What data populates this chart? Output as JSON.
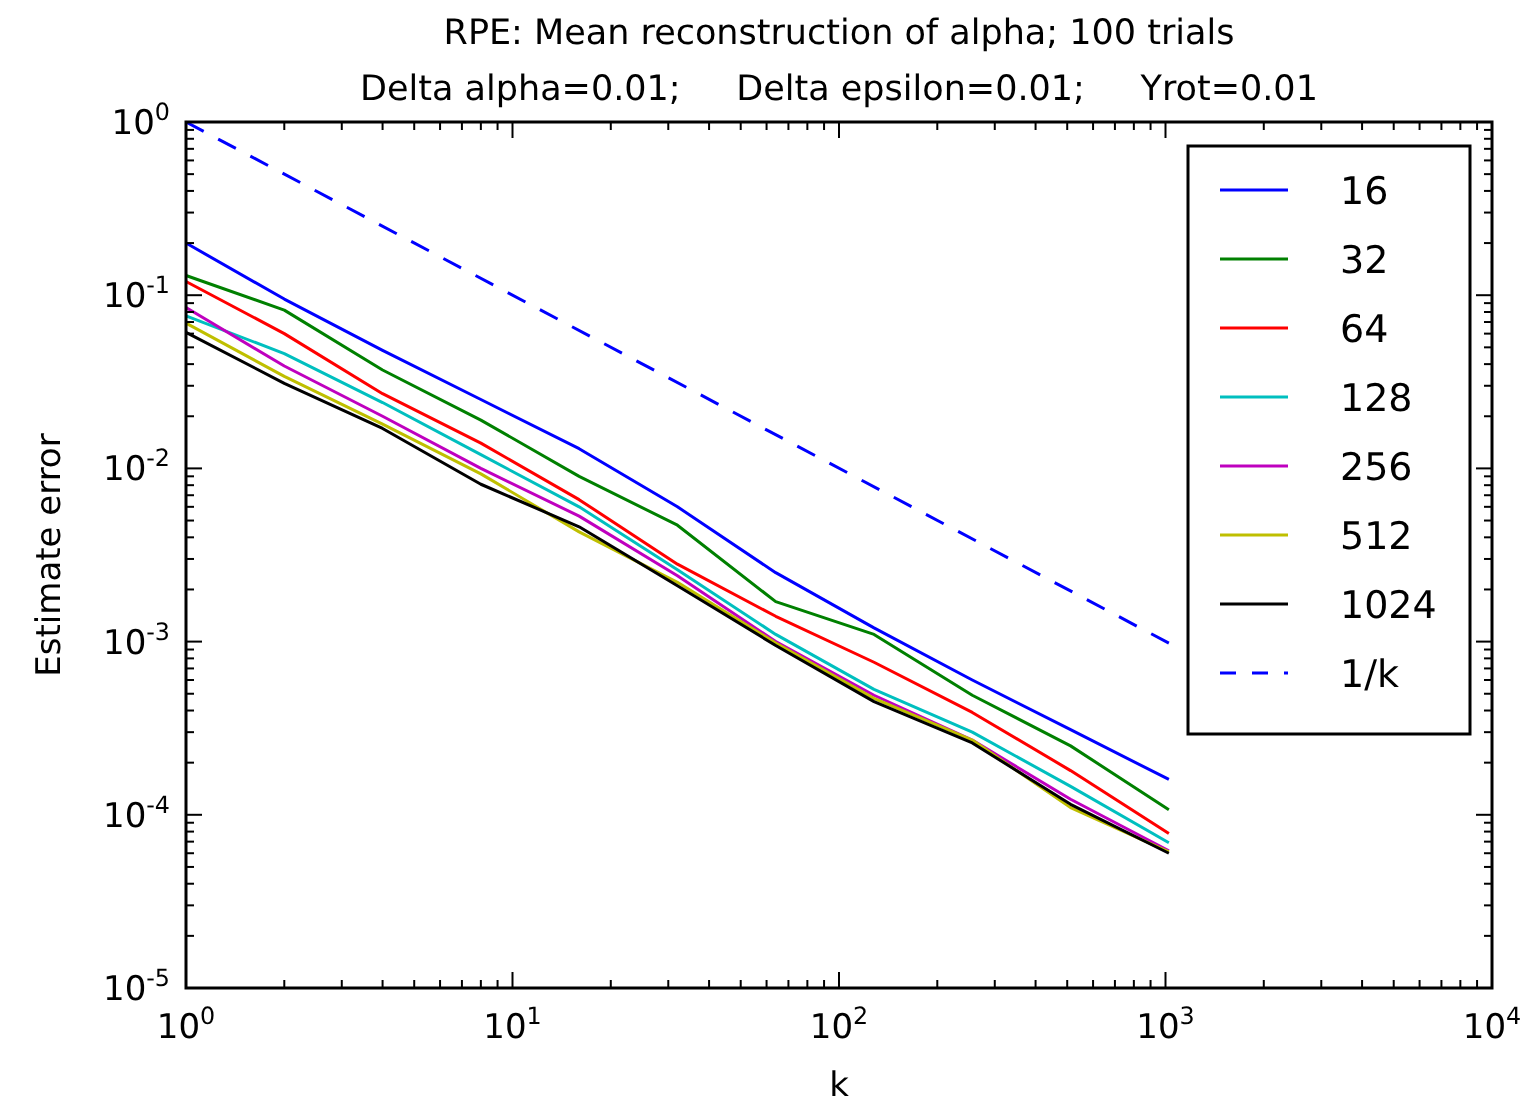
{
  "chart_data": {
    "type": "line",
    "title": "RPE: Mean reconstruction of alpha; 100 trials",
    "subtitle": "Delta alpha=0.01;     Delta epsilon=0.01;     Yrot=0.01",
    "xlabel": "k",
    "ylabel": "Estimate error",
    "log": "xy",
    "grid": false,
    "legend": "top right",
    "line_style": "solid",
    "marker": "none",
    "xlim": [
      1,
      10000
    ],
    "ylim": [
      1e-05,
      1
    ],
    "xticks": [
      {
        "value": 1,
        "label": "10$^{0}$"
      },
      {
        "value": 2,
        "label": null
      },
      {
        "value": 3,
        "label": null
      },
      {
        "value": 4,
        "label": null
      },
      {
        "value": 5,
        "label": null
      },
      {
        "value": 6,
        "label": null
      },
      {
        "value": 7,
        "label": null
      },
      {
        "value": 8,
        "label": null
      },
      {
        "value": 9,
        "label": null
      },
      {
        "value": 10,
        "label": "10$^{1}$"
      },
      {
        "value": 20,
        "label": null
      },
      {
        "value": 30,
        "label": null
      },
      {
        "value": 40,
        "label": null
      },
      {
        "value": 50,
        "label": null
      },
      {
        "value": 60,
        "label": null
      },
      {
        "value": 70,
        "label": null
      },
      {
        "value": 80,
        "label": null
      },
      {
        "value": 90,
        "label": null
      },
      {
        "value": 100,
        "label": "10$^{2}$"
      },
      {
        "value": 200,
        "label": null
      },
      {
        "value": 300,
        "label": null
      },
      {
        "value": 400,
        "label": null
      },
      {
        "value": 500,
        "label": null
      },
      {
        "value": 600,
        "label": null
      },
      {
        "value": 700,
        "label": null
      },
      {
        "value": 800,
        "label": null
      },
      {
        "value": 900,
        "label": null
      },
      {
        "value": 1000,
        "label": "10$^{3}$"
      },
      {
        "value": 2000,
        "label": null
      },
      {
        "value": 3000,
        "label": null
      },
      {
        "value": 4000,
        "label": null
      },
      {
        "value": 5000,
        "label": null
      },
      {
        "value": 6000,
        "label": null
      },
      {
        "value": 7000,
        "label": null
      },
      {
        "value": 8000,
        "label": null
      },
      {
        "value": 9000,
        "label": null
      },
      {
        "value": 10000,
        "label": "10$^{4}$"
      }
    ],
    "yticks": [
      {
        "value": 1e-05,
        "label": "10$^{-5}$"
      },
      {
        "value": 2e-05,
        "label": null
      },
      {
        "value": 3e-05,
        "label": null
      },
      {
        "value": 4e-05,
        "label": null
      },
      {
        "value": 5e-05,
        "label": null
      },
      {
        "value": 6e-05,
        "label": null
      },
      {
        "value": 7e-05,
        "label": null
      },
      {
        "value": 8e-05,
        "label": null
      },
      {
        "value": 9e-05,
        "label": null
      },
      {
        "value": 0.0001,
        "label": "10$^{-4}$"
      },
      {
        "value": 0.0002,
        "label": null
      },
      {
        "value": 0.0003,
        "label": null
      },
      {
        "value": 0.0004,
        "label": null
      },
      {
        "value": 0.0005,
        "label": null
      },
      {
        "value": 0.0006,
        "label": null
      },
      {
        "value": 0.0007,
        "label": null
      },
      {
        "value": 0.0008,
        "label": null
      },
      {
        "value": 0.0009,
        "label": null
      },
      {
        "value": 0.001,
        "label": "10$^{-3}$"
      },
      {
        "value": 0.002,
        "label": null
      },
      {
        "value": 0.003,
        "label": null
      },
      {
        "value": 0.004,
        "label": null
      },
      {
        "value": 0.005,
        "label": null
      },
      {
        "value": 0.006,
        "label": null
      },
      {
        "value": 0.007,
        "label": null
      },
      {
        "value": 0.008,
        "label": null
      },
      {
        "value": 0.009,
        "label": null
      },
      {
        "value": 0.01,
        "label": "10$^{-2}$"
      },
      {
        "value": 0.02,
        "label": null
      },
      {
        "value": 0.03,
        "label": null
      },
      {
        "value": 0.04,
        "label": null
      },
      {
        "value": 0.05,
        "label": null
      },
      {
        "value": 0.06,
        "label": null
      },
      {
        "value": 0.07,
        "label": null
      },
      {
        "value": 0.08,
        "label": null
      },
      {
        "value": 0.09,
        "label": null
      },
      {
        "value": 0.1,
        "label": "10$^{-1}$"
      },
      {
        "value": 0.2,
        "label": null
      },
      {
        "value": 0.3,
        "label": null
      },
      {
        "value": 0.4,
        "label": null
      },
      {
        "value": 0.5,
        "label": null
      },
      {
        "value": 0.6,
        "label": null
      },
      {
        "value": 0.7,
        "label": null
      },
      {
        "value": 0.8,
        "label": null
      },
      {
        "value": 0.9,
        "label": null
      },
      {
        "value": 1,
        "label": "10$^{0}$"
      }
    ],
    "x": [
      1,
      2,
      4,
      8,
      16,
      32,
      64,
      128,
      256,
      512,
      1024
    ],
    "series": [
      {
        "name": "16",
        "color": "#0000ff",
        "values": [
          0.2,
          0.095,
          0.048,
          0.025,
          0.013,
          0.006,
          0.0025,
          0.0012,
          0.0006,
          0.00031,
          0.00016
        ]
      },
      {
        "name": "32",
        "color": "#008000",
        "values": [
          0.13,
          0.082,
          0.037,
          0.019,
          0.009,
          0.0047,
          0.0017,
          0.0011,
          0.00049,
          0.00025,
          0.000107
        ]
      },
      {
        "name": "64",
        "color": "#ff0000",
        "values": [
          0.12,
          0.06,
          0.027,
          0.014,
          0.0066,
          0.0028,
          0.0014,
          0.00076,
          0.00039,
          0.00018,
          7.8e-05
        ]
      },
      {
        "name": "128",
        "color": "#00bfbf",
        "values": [
          0.076,
          0.046,
          0.024,
          0.012,
          0.006,
          0.0026,
          0.0011,
          0.00053,
          0.0003,
          0.000146,
          6.9e-05
        ]
      },
      {
        "name": "256",
        "color": "#bf00bf",
        "values": [
          0.085,
          0.039,
          0.02,
          0.01,
          0.0053,
          0.0024,
          0.001,
          0.00049,
          0.00027,
          0.000123,
          6.2e-05
        ]
      },
      {
        "name": "512",
        "color": "#bfbf00",
        "values": [
          0.069,
          0.034,
          0.018,
          0.0093,
          0.0043,
          0.0022,
          0.00098,
          0.00047,
          0.00027,
          0.00011,
          6.1e-05
        ]
      },
      {
        "name": "1024",
        "color": "#000000",
        "values": [
          0.061,
          0.031,
          0.017,
          0.0081,
          0.0046,
          0.0021,
          0.00095,
          0.00045,
          0.00026,
          0.000115,
          6e-05
        ]
      },
      {
        "name": "1/k",
        "color": "#0000ff",
        "line_style": "dashed",
        "x": [
          1,
          1024
        ],
        "values": [
          1,
          0.00098
        ]
      }
    ]
  }
}
